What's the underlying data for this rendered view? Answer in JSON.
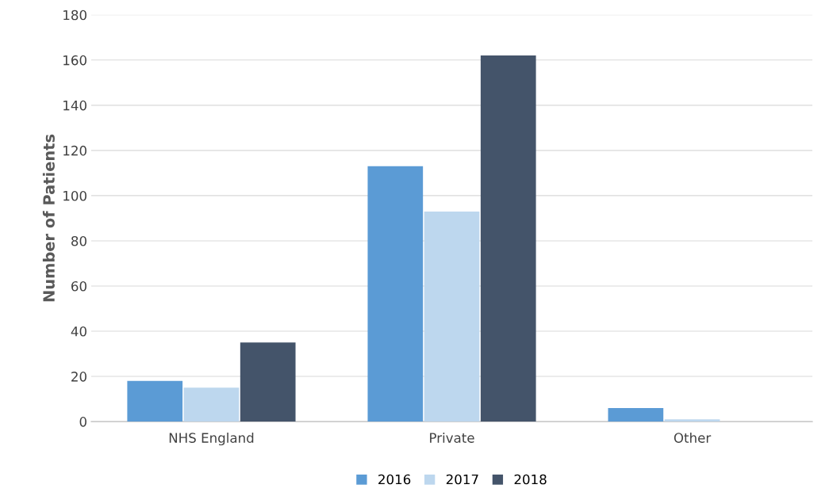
{
  "chart_data": {
    "type": "bar",
    "ylabel": "Number of Patients",
    "categories": [
      "NHS England",
      "Private",
      "Other"
    ],
    "series": [
      {
        "name": "2016",
        "color": "#5b9bd5",
        "values": [
          18,
          113,
          6
        ]
      },
      {
        "name": "2017",
        "color": "#bdd7ee",
        "values": [
          15,
          93,
          1
        ]
      },
      {
        "name": "2018",
        "color": "#44546a",
        "values": [
          35,
          162,
          0
        ]
      }
    ],
    "ylim": [
      0,
      180
    ],
    "yticks": [
      0,
      20,
      40,
      60,
      80,
      100,
      120,
      140,
      160,
      180
    ],
    "grid": "y",
    "legend": "bottom"
  }
}
